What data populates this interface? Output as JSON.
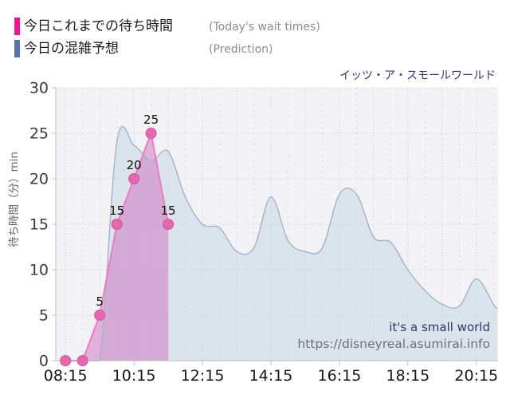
{
  "title": "イッツ・ア・スモールワールド",
  "legend": {
    "items": [
      {
        "label_jp": "今日これまでの待ち時間",
        "label_en": "(Today's wait times)",
        "color": "#f2148e"
      },
      {
        "label_jp": "今日の混雑予想",
        "label_en": "(Prediction)",
        "color": "#5b73a9"
      }
    ]
  },
  "watermark": {
    "line1": "it's a small world",
    "line2": "https://disneyreal.asumirai.info"
  },
  "chart_data": {
    "type": "area",
    "title": "イッツ・ア・スモールワールド",
    "xlabel": "",
    "ylabel": "待ち時間（分）min",
    "ylim": [
      0,
      30
    ],
    "y_ticks": [
      0,
      5,
      10,
      15,
      20,
      25,
      30
    ],
    "x_tick_labels": [
      "08:15",
      "10:15",
      "12:15",
      "14:15",
      "16:15",
      "18:15",
      "20:15"
    ],
    "x_domain": [
      "07:58",
      "20:53"
    ],
    "grid": true,
    "legend_position": "top-left",
    "series": [
      {
        "name": "今日これまでの待ち時間 (Today's wait times)",
        "kind": "line-area-markers",
        "legend_color": "#f2148e",
        "line_color": "#ef7abc",
        "marker_color": "#e468ae",
        "marker_edge_color": "#d352a0",
        "fill_color": "rgba(205,105,190,0.47)",
        "times": [
          "08:15",
          "08:45",
          "09:15",
          "09:45",
          "10:15",
          "10:45",
          "11:15"
        ],
        "values": [
          0,
          0,
          5,
          15,
          20,
          25,
          15
        ],
        "point_labels": [
          "",
          "",
          "5",
          "15",
          "20",
          "25",
          "15"
        ]
      },
      {
        "name": "今日の混雑予想 (Prediction)",
        "kind": "smooth-area",
        "legend_color": "#5b73a9",
        "line_color": "#a0b4ca",
        "fill_color": "rgba(198,213,228,0.55)",
        "times": [
          "08:15",
          "08:45",
          "09:15",
          "09:45",
          "10:15",
          "10:45",
          "11:15",
          "11:45",
          "12:15",
          "12:45",
          "13:15",
          "13:45",
          "14:15",
          "14:45",
          "15:15",
          "15:45",
          "16:15",
          "16:45",
          "17:15",
          "17:45",
          "18:15",
          "18:45",
          "19:15",
          "19:45",
          "20:15",
          "20:45",
          "20:52"
        ],
        "values": [
          0,
          0,
          0,
          24,
          23.7,
          22,
          23,
          18,
          15,
          14.6,
          12,
          12.4,
          18,
          13.2,
          12,
          12.4,
          18.3,
          18.3,
          13.6,
          13,
          10,
          7.7,
          6.2,
          6,
          9,
          6.2,
          5.7
        ]
      }
    ],
    "style": {
      "band_plain": "#f3f3f5",
      "band_dotted_bg": "#f6f6f8",
      "band_dot": "#e4e4ea",
      "grid_major": "#c9c9cd",
      "grid_minor": "#d8d8dc",
      "axis_line": "#bfbfc3",
      "y_tick_label_color": "#3a3a3a",
      "x_tick_label_color": "#161616",
      "point_label_color": "#101010"
    }
  }
}
